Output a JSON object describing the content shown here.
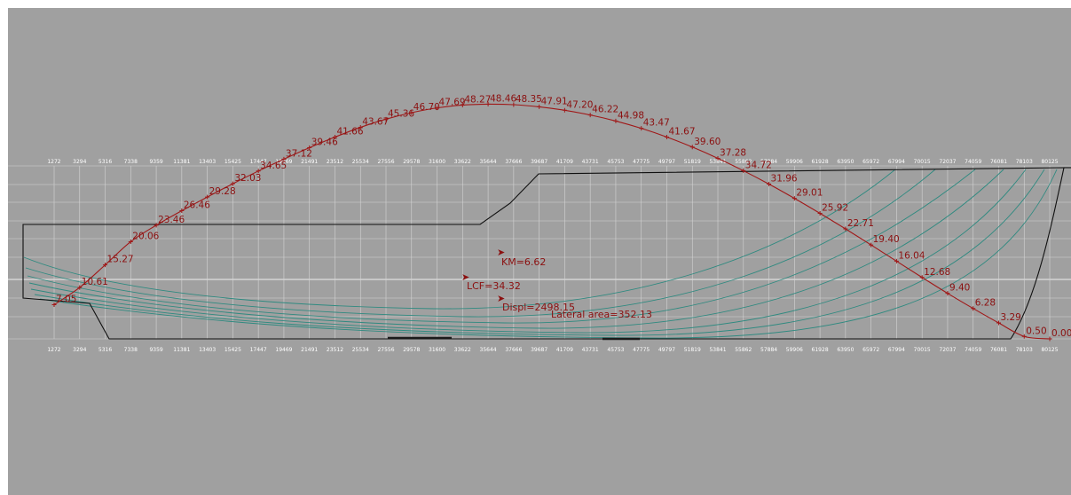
{
  "colors": {
    "background": "#a0a0a0",
    "grid": "#d4d4d4",
    "hull_outline": "#101010",
    "waterlines": "#2f8a80",
    "sac_curve": "#a01818",
    "labels": "#8b1010"
  },
  "stations": [
    "1272",
    "3294",
    "5316",
    "7338",
    "9359",
    "11381",
    "13403",
    "15425",
    "17447",
    "19469",
    "21491",
    "23512",
    "25534",
    "27556",
    "29578",
    "31600",
    "33622",
    "35644",
    "37666",
    "39687",
    "41709",
    "43731",
    "45753",
    "47775",
    "49797",
    "51819",
    "53841",
    "55862",
    "57884",
    "59906",
    "61928",
    "63950",
    "65972",
    "67994",
    "70015",
    "72037",
    "74059",
    "76081",
    "78103",
    "80125"
  ],
  "top_station_labels": [
    "1272",
    "3294",
    "5316",
    "7338",
    "9359",
    "11381",
    "13403",
    "15425",
    "17447",
    "19469",
    "21491",
    "23512",
    "25534",
    "27556",
    "29578",
    "31600",
    "33622",
    "35644",
    "37666",
    "39687",
    "41709",
    "43731",
    "45753",
    "47775",
    "49797",
    "51819",
    "53841",
    "55862",
    "57884",
    "59906",
    "61928",
    "63950",
    "65972",
    "67994",
    "70015",
    "72037",
    "74059",
    "76081",
    "78103",
    "80125"
  ],
  "sac_values": [
    "7.05",
    "10.61",
    "15.27",
    "20.06",
    "23.46",
    "26.46",
    "29.28",
    "32.03",
    "34.65",
    "37.12",
    "39.46",
    "41.66",
    "43.67",
    "45.36",
    "46.70",
    "47.69",
    "48.27",
    "48.46",
    "48.35",
    "47.91",
    "47.20",
    "46.22",
    "44.98",
    "43.47",
    "41.67",
    "39.60",
    "37.28",
    "34.72",
    "31.96",
    "29.01",
    "25.92",
    "22.71",
    "19.40",
    "16.04",
    "12.68",
    "9.40",
    "6.28",
    "3.29",
    "0.50",
    "0.00"
  ],
  "hydrostatics": {
    "km": "KM=6.62",
    "lcf": "LCF=34.32",
    "displ": "Displ=2498.15",
    "lateral_area": "Lateral area=352.13"
  }
}
